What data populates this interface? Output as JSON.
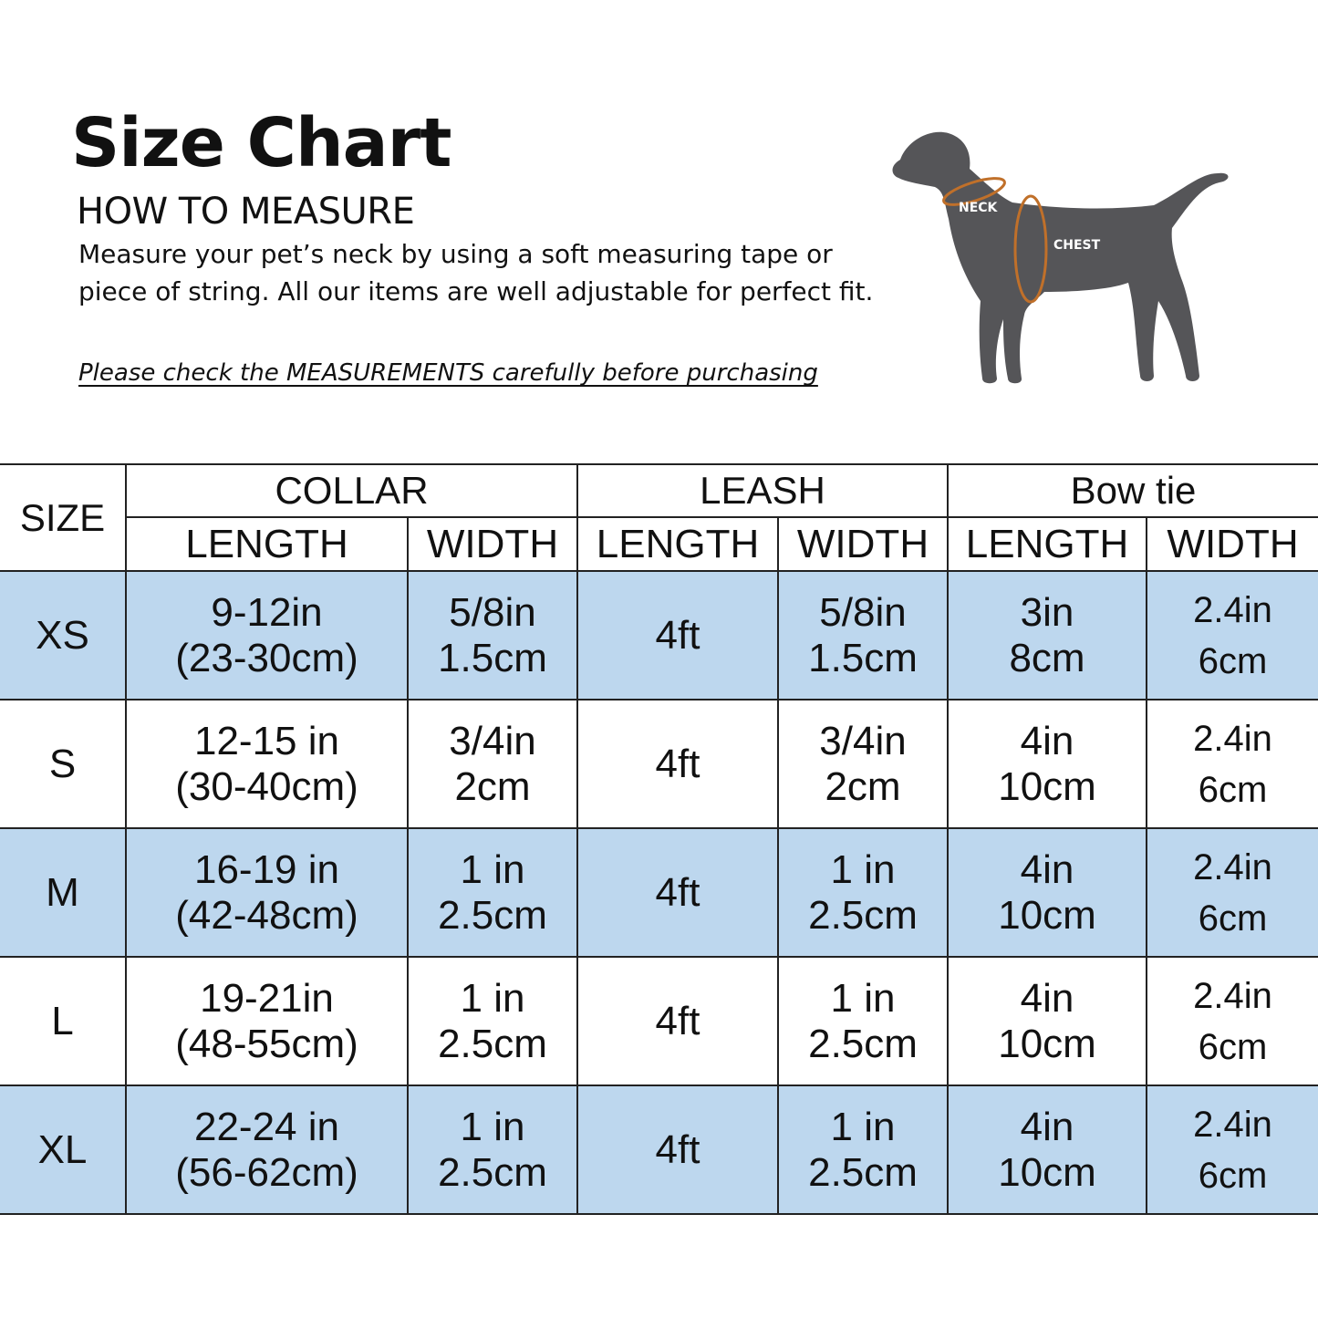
{
  "header": {
    "title": "Size Chart",
    "subtitle": "HOW TO MEASURE",
    "description": "Measure your pet’s neck by using a soft measuring tape or piece of string. All our items are well adjustable for perfect fit.",
    "note": "Please check the MEASUREMENTS carefully before purchasing"
  },
  "diagram": {
    "neck_label": "NECK",
    "chest_label": "CHEST",
    "dog_color": "#555558",
    "tape_color": "#c0702a"
  },
  "table": {
    "size_header": "SIZE",
    "groups": [
      "COLLAR",
      "LEASH",
      "Bow tie"
    ],
    "subheaders": [
      "LENGTH",
      "WIDTH",
      "LENGTH",
      "WIDTH",
      "LENGTH",
      "WIDTH"
    ],
    "highlight_color": "#bdd7ee",
    "rows": [
      {
        "size": "XS",
        "collar_length": [
          "9-12in",
          "(23-30cm)"
        ],
        "collar_width": [
          "5/8in",
          "1.5cm"
        ],
        "leash_length": "4ft",
        "leash_width": [
          "5/8in",
          "1.5cm"
        ],
        "bow_length": [
          "3in",
          "8cm"
        ],
        "bow_width": [
          "2.4in",
          "6cm"
        ]
      },
      {
        "size": "S",
        "collar_length": [
          "12-15 in",
          "(30-40cm)"
        ],
        "collar_width": [
          "3/4in",
          "2cm"
        ],
        "leash_length": "4ft",
        "leash_width": [
          "3/4in",
          "2cm"
        ],
        "bow_length": [
          "4in",
          "10cm"
        ],
        "bow_width": [
          "2.4in",
          "6cm"
        ]
      },
      {
        "size": "M",
        "collar_length": [
          "16-19 in",
          "(42-48cm)"
        ],
        "collar_width": [
          "1 in",
          "2.5cm"
        ],
        "leash_length": "4ft",
        "leash_width": [
          "1 in",
          "2.5cm"
        ],
        "bow_length": [
          "4in",
          "10cm"
        ],
        "bow_width": [
          "2.4in",
          "6cm"
        ]
      },
      {
        "size": "L",
        "collar_length": [
          "19-21in",
          "(48-55cm)"
        ],
        "collar_width": [
          "1 in",
          "2.5cm"
        ],
        "leash_length": "4ft",
        "leash_width": [
          "1 in",
          "2.5cm"
        ],
        "bow_length": [
          "4in",
          "10cm"
        ],
        "bow_width": [
          "2.4in",
          "6cm"
        ]
      },
      {
        "size": "XL",
        "collar_length": [
          "22-24 in",
          "(56-62cm)"
        ],
        "collar_width": [
          "1 in",
          "2.5cm"
        ],
        "leash_length": "4ft",
        "leash_width": [
          "1 in",
          "2.5cm"
        ],
        "bow_length": [
          "4in",
          "10cm"
        ],
        "bow_width": [
          "2.4in",
          "6cm"
        ]
      }
    ]
  }
}
